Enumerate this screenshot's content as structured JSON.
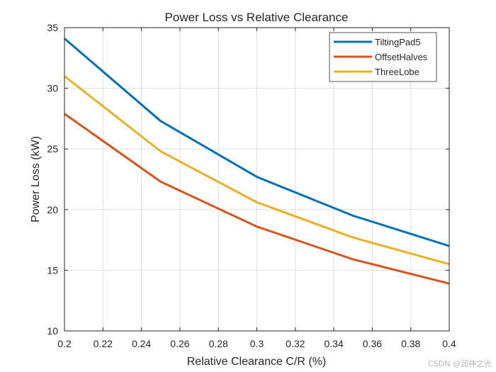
{
  "chart_data": {
    "type": "line",
    "title": "Power Loss vs Relative Clearance",
    "xlabel": "Relative Clearance C/R (%)",
    "ylabel": "Power Loss (kW)",
    "xlim": [
      0.2,
      0.4
    ],
    "ylim": [
      10,
      35
    ],
    "xticks": [
      0.2,
      0.22,
      0.24,
      0.26,
      0.28,
      0.3,
      0.32,
      0.34,
      0.36,
      0.38,
      0.4
    ],
    "xtick_labels": [
      "0.2",
      "0.22",
      "0.24",
      "0.26",
      "0.28",
      "0.3",
      "0.32",
      "0.34",
      "0.36",
      "0.38",
      "0.4"
    ],
    "yticks": [
      10,
      15,
      20,
      25,
      30,
      35
    ],
    "ytick_labels": [
      "10",
      "15",
      "20",
      "25",
      "30",
      "35"
    ],
    "grid": true,
    "legend_position": "top-right",
    "x": [
      0.2,
      0.25,
      0.3,
      0.35,
      0.4
    ],
    "series": [
      {
        "name": "TiltingPad5",
        "color": "#0072BD",
        "values": [
          34.1,
          27.3,
          22.7,
          19.5,
          17.0
        ]
      },
      {
        "name": "OffsetHalves",
        "color": "#D95319",
        "values": [
          27.9,
          22.3,
          18.6,
          15.9,
          13.9
        ]
      },
      {
        "name": "ThreeLobe",
        "color": "#EDB120",
        "values": [
          31.0,
          24.8,
          20.6,
          17.7,
          15.5
        ]
      }
    ]
  },
  "watermark": "CSDN @润神之光"
}
